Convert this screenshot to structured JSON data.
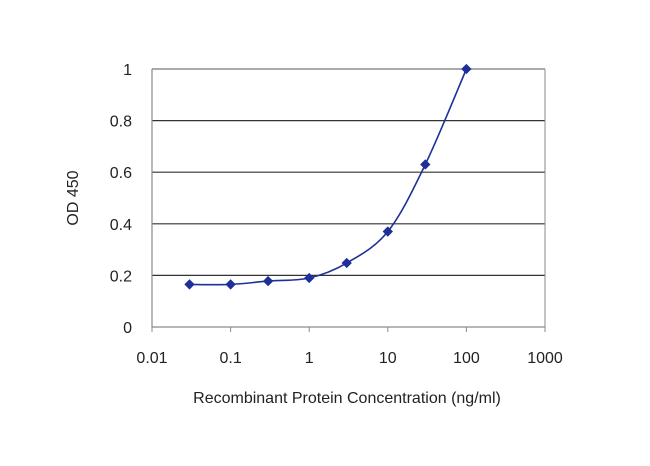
{
  "chart_data": {
    "type": "scatter",
    "title": "",
    "xlabel": "Recombinant Protein Concentration (ng/ml)",
    "ylabel": "OD 450",
    "x_scale": "log",
    "xlim": [
      0.01,
      1000
    ],
    "ylim": [
      0,
      1
    ],
    "x_ticks": [
      0.01,
      0.1,
      1,
      10,
      100,
      1000
    ],
    "x_tick_labels": [
      "0.01",
      "0.1",
      "1",
      "10",
      "100",
      "1000"
    ],
    "y_ticks": [
      0,
      0.2,
      0.4,
      0.6,
      0.8,
      1
    ],
    "y_tick_labels": [
      "0",
      "0.2",
      "0.4",
      "0.6",
      "0.8",
      "1"
    ],
    "grid": "horizontal",
    "legend": "none",
    "series": [
      {
        "marker": "diamond",
        "line": "smooth",
        "x": [
          0.03,
          0.1,
          0.3,
          1,
          3,
          10,
          30,
          100
        ],
        "y": [
          0.165,
          0.165,
          0.178,
          0.19,
          0.248,
          0.37,
          0.63,
          1.0
        ]
      }
    ],
    "colors": {
      "series": "#1f2f9a",
      "grid": "#333333",
      "frame": "#8a8a8a",
      "text": "#222222"
    }
  }
}
